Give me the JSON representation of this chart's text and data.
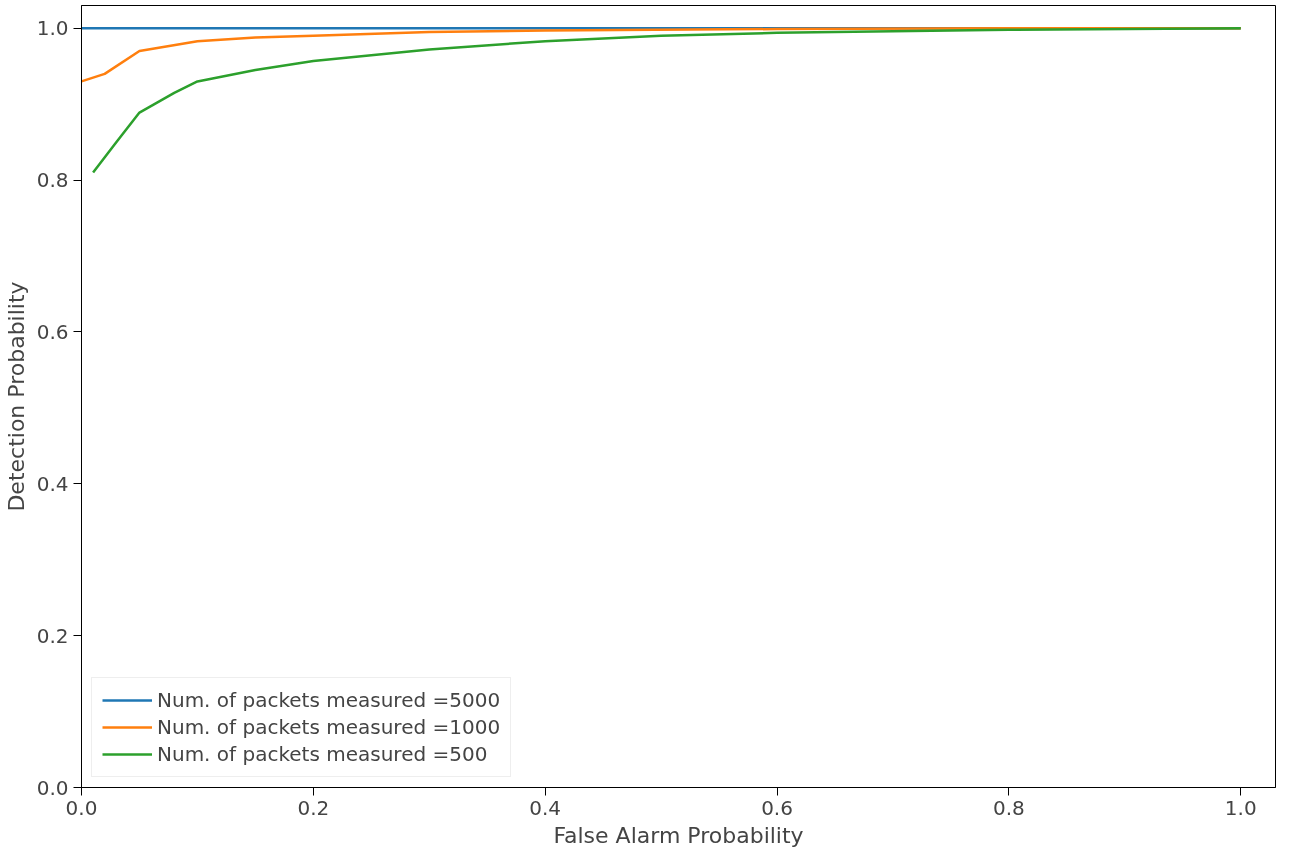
{
  "chart_data": {
    "type": "line",
    "xlabel": "False Alarm Probability",
    "ylabel": "Detection Probability",
    "xlim": [
      0,
      1.03
    ],
    "ylim": [
      0,
      1.03
    ],
    "xticks": [
      {
        "value": 0,
        "label": "0.0"
      },
      0.2,
      0.4,
      0.6,
      0.8,
      {
        "value": 1,
        "label": "1.0"
      }
    ],
    "yticks": [
      {
        "value": 0,
        "label": "0.0"
      },
      0.2,
      0.4,
      0.6,
      0.8,
      {
        "value": 1,
        "label": "1.0"
      }
    ],
    "grid": false,
    "legend": "bottom left",
    "series": [
      {
        "name": "Num. of packets measured =5000",
        "color": "#1f77b4",
        "x": [
          0.0,
          1.0
        ],
        "values": [
          1.0,
          1.0
        ]
      },
      {
        "name": "Num. of packets measured =1000",
        "color": "#ff7f0e",
        "x": [
          0.0,
          0.02,
          0.05,
          0.1,
          0.15,
          0.2,
          0.3,
          0.4,
          0.6,
          0.8,
          1.0
        ],
        "values": [
          0.93,
          0.94,
          0.97,
          0.983,
          0.988,
          0.99,
          0.995,
          0.997,
          0.999,
          1.0,
          1.0
        ]
      },
      {
        "name": "Num. of packets measured =500",
        "color": "#2ca02c",
        "x": [
          0.01,
          0.03,
          0.05,
          0.08,
          0.1,
          0.15,
          0.2,
          0.3,
          0.4,
          0.5,
          0.6,
          0.8,
          1.0
        ],
        "values": [
          0.81,
          0.85,
          0.889,
          0.915,
          0.93,
          0.945,
          0.957,
          0.972,
          0.983,
          0.99,
          0.994,
          0.998,
          1.0
        ]
      }
    ]
  }
}
